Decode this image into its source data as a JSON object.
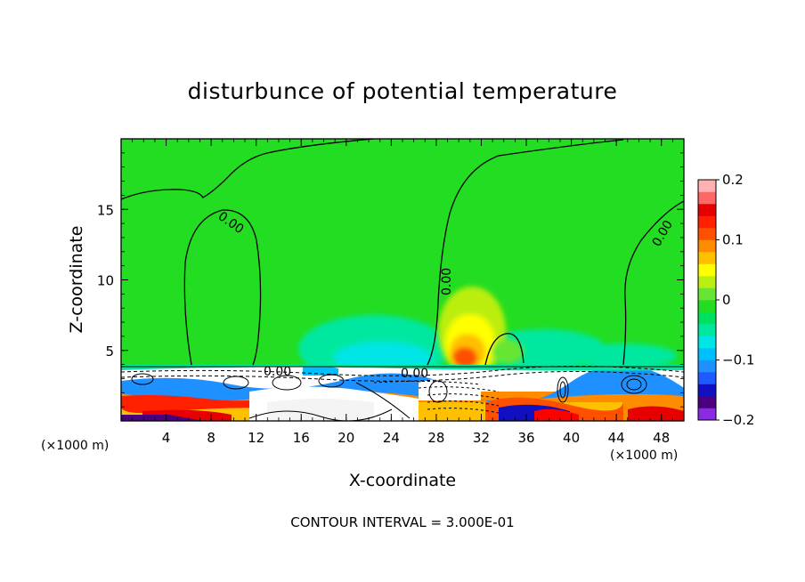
{
  "chart_data": {
    "type": "heatmap",
    "title": "disturbunce of potential temperature",
    "xlabel": "X-coordinate",
    "ylabel": "Z-coordinate",
    "x_unit": "(×1000 m)",
    "xlim": [
      0,
      50
    ],
    "ylim": [
      0,
      20
    ],
    "x_ticks": [
      "4",
      "8",
      "12",
      "16",
      "20",
      "24",
      "28",
      "32",
      "36",
      "40",
      "44",
      "48"
    ],
    "y_ticks": [
      "5",
      "10",
      "15"
    ],
    "colorbar": {
      "range": [
        -0.2,
        0.2
      ],
      "tick_labels": [
        "0.2",
        "0.1",
        "0",
        "−0.1",
        "−0.2"
      ],
      "colors": [
        "#8a2be2",
        "#4b0082",
        "#1010c0",
        "#1e5aff",
        "#1e90ff",
        "#00bfff",
        "#00e5e5",
        "#00e8a0",
        "#00e060",
        "#22dd22",
        "#66e633",
        "#bbee11",
        "#ffff00",
        "#ffc000",
        "#ff8c00",
        "#ff5000",
        "#ff2000",
        "#e60000",
        "#ff6666",
        "#ffb0b0"
      ]
    },
    "contour_labels": [
      "0.00",
      "0.00",
      "0.00",
      "0.00",
      "0.00"
    ],
    "footer": "CONTOUR INTERVAL = 3.000E-01"
  }
}
